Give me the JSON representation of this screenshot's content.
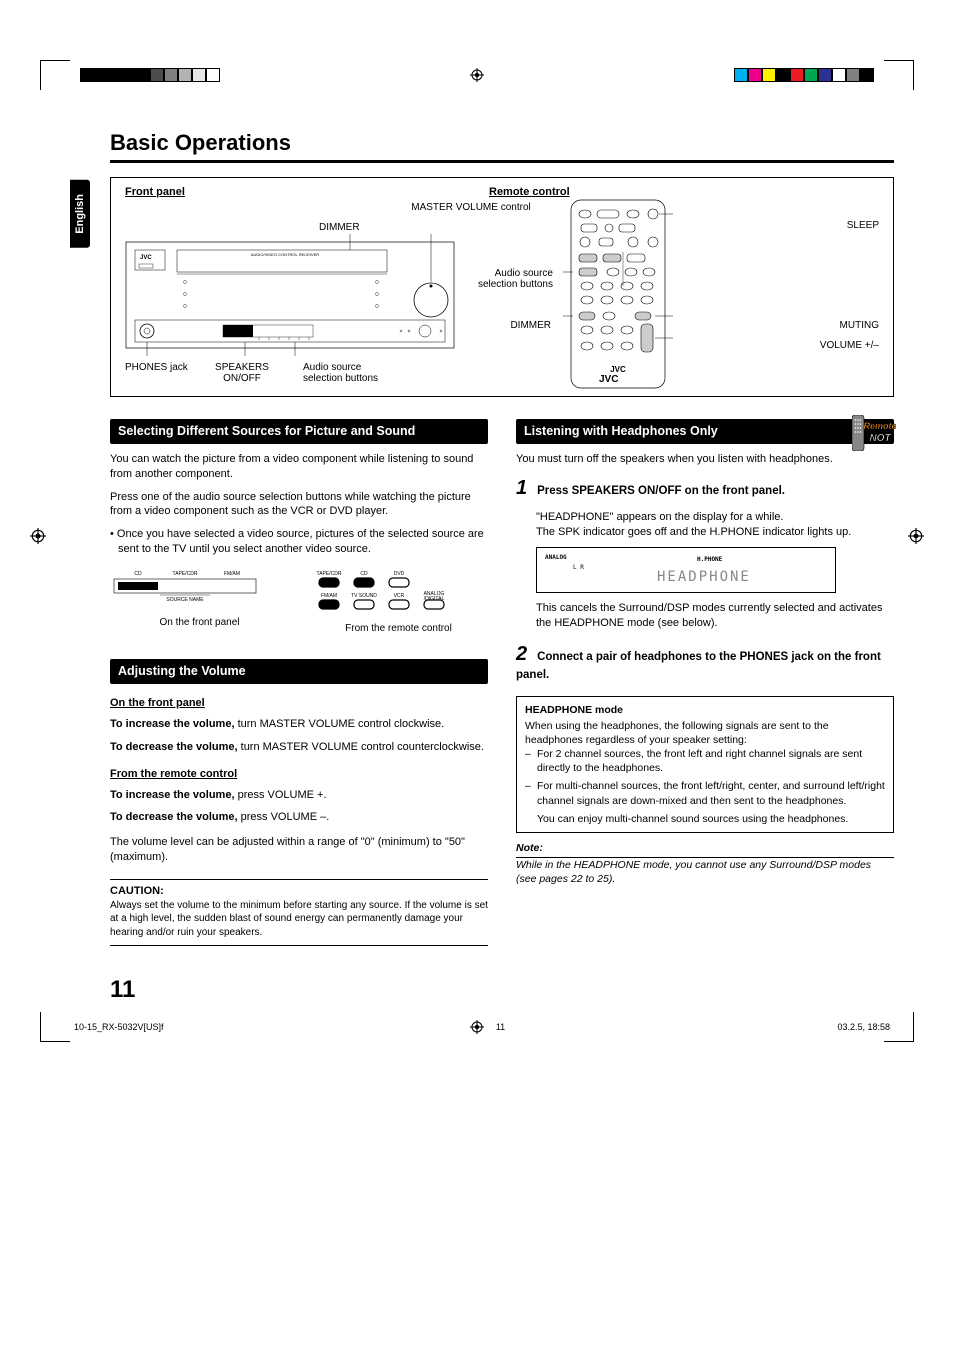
{
  "meta": {
    "language_tab": "English",
    "page_number": "11",
    "footer_left": "10-15_RX-5032V[US]f",
    "footer_center": "11",
    "footer_right": "03.2.5, 18:58"
  },
  "title": "Basic Operations",
  "reg_swatches_left": [
    "#000000",
    "#000000",
    "#000000",
    "#000000",
    "#000000",
    "#4d4d4d",
    "#808080",
    "#b3b3b3",
    "#e6e6e6",
    "#ffffff"
  ],
  "reg_swatches_right": [
    "#00afef",
    "#ec008c",
    "#fff200",
    "#000000",
    "#ec1c24",
    "#00a652",
    "#2e3092",
    "#ffffff",
    "#808080",
    "#000000"
  ],
  "diagram": {
    "front_panel_head": "Front panel",
    "remote_head": "Remote control",
    "labels": {
      "master_volume": "MASTER VOLUME control",
      "dimmer": "DIMMER",
      "phones_jack": "PHONES jack",
      "speakers_onoff": "SPEAKERS ON/OFF",
      "audio_src_btns": "Audio source selection buttons",
      "sleep": "SLEEP",
      "audio_src_btns2": "Audio source selection buttons",
      "dimmer2": "DIMMER",
      "muting": "MUTING",
      "volume_pm": "VOLUME +/–",
      "jvc": "JVC"
    },
    "front_panel_brand": "JVC",
    "front_panel_subtitle": "AUDIO/VIDEO CONTROL RECEIVER"
  },
  "sections": {
    "selecting": {
      "title": "Selecting Different Sources for Picture and Sound",
      "p1": "You can watch the picture from a video component while listening to sound from another component.",
      "p2": "Press one of the audio source selection buttons while watching the picture from a video component such as the VCR or DVD player.",
      "bullet": "Once you have selected a video source, pictures of the selected source are sent to the TV until you select another video source.",
      "left_btns": [
        "CD",
        "TAPE/CDR",
        "FM/AM"
      ],
      "left_sub": "SOURCE NAME",
      "left_caption": "On the front panel",
      "right_btns_row1": [
        "TAPE/CDR",
        "CD",
        "DVD"
      ],
      "right_btns_row2": [
        "FM/AM",
        "TV SOUND",
        "VCR",
        "ANALOG /DIGITAL"
      ],
      "right_caption": "From the remote control"
    },
    "volume": {
      "title": "Adjusting the Volume",
      "sub1": "On the front panel",
      "inc_panel_b": "To increase the volume,",
      "inc_panel_t": " turn MASTER VOLUME control clockwise.",
      "dec_panel_b": "To decrease the volume,",
      "dec_panel_t": " turn MASTER VOLUME control counterclockwise.",
      "sub2": "From the remote control",
      "inc_rc_b": "To increase the volume,",
      "inc_rc_t": " press VOLUME +.",
      "dec_rc_b": "To decrease the volume,",
      "dec_rc_t": " press VOLUME –.",
      "range": "The volume level can be adjusted within a range of \"0\" (minimum) to \"50\" (maximum).",
      "caution_head": "CAUTION:",
      "caution_text": "Always set the volume to the minimum before starting any source. If the volume is set at a high level, the sudden blast of sound energy can permanently damage your hearing and/or ruin your speakers."
    },
    "listening": {
      "title": "Listening with Headphones Only",
      "badge_top": "Remote",
      "badge_bot": "NOT",
      "intro": "You must turn off the speakers when you listen with headphones.",
      "step1_num": "1",
      "step1_head": "Press SPEAKERS ON/OFF on the front panel.",
      "step1_b1": "\"HEADPHONE\" appears on the display for a while.",
      "step1_b2": "The SPK indicator goes off and the H.PHONE indicator lights up.",
      "lcd_analog": "ANALOG",
      "lcd_lr": "L   R",
      "lcd_hphone": "H.PHONE",
      "lcd_text": "HEADPHONE",
      "step1_after": "This cancels the Surround/DSP modes currently selected and activates the HEADPHONE mode (see below).",
      "step2_num": "2",
      "step2_head": "Connect a pair of headphones to the PHONES jack on the front panel.",
      "box_head": "HEADPHONE mode",
      "box_p": "When using the headphones, the following signals are sent to the headphones regardless of your speaker setting:",
      "box_li1": "For 2 channel sources, the front left and right channel signals are sent directly to the headphones.",
      "box_li2": "For multi-channel sources, the front left/right, center, and surround left/right channel signals are down-mixed and then sent to the headphones.",
      "box_tail": "You can enjoy multi-channel sound sources using the headphones.",
      "note_label": "Note:",
      "note_text": "While in the HEADPHONE mode, you cannot use any Surround/DSP modes (see pages 22 to 25)."
    }
  }
}
